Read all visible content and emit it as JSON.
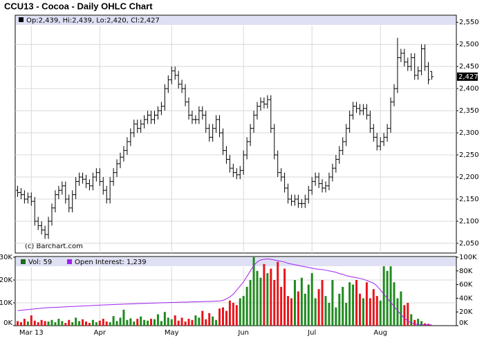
{
  "chart_data": {
    "type": "ohlc",
    "title": "CCU13 - Cocoa - Daily OHLC Chart",
    "price_legend": "Op:2,439, Hi:2,439, Lo:2,420, Cl:2,427",
    "credit": "(c) Barchart.com",
    "last_label": "2,427",
    "categories": [
      null,
      null,
      null,
      null,
      "Mar 13",
      null,
      null,
      null,
      null,
      null,
      null,
      null,
      null,
      null,
      null,
      null,
      null,
      null,
      null,
      null,
      null,
      null,
      null,
      null,
      "Apr",
      null,
      null,
      null,
      null,
      null,
      null,
      null,
      null,
      null,
      null,
      null,
      null,
      null,
      null,
      null,
      null,
      null,
      null,
      null,
      null,
      "May",
      null,
      null,
      null,
      null,
      null,
      null,
      null,
      null,
      null,
      null,
      null,
      null,
      null,
      null,
      null,
      null,
      null,
      null,
      null,
      null,
      "Jun",
      null,
      null,
      null,
      null,
      null,
      null,
      null,
      null,
      null,
      null,
      null,
      null,
      null,
      null,
      null,
      null,
      null,
      null,
      null,
      "Jul",
      null,
      null,
      null,
      null,
      null,
      null,
      null,
      null,
      null,
      null,
      null,
      null,
      null,
      null,
      null,
      null,
      null,
      null,
      null,
      "Aug",
      null,
      null,
      null,
      null,
      null,
      null,
      null,
      null,
      null,
      null,
      null,
      null,
      null,
      null,
      null
    ],
    "open": [
      2170,
      2165,
      2160,
      2150,
      2155,
      2145,
      2100,
      2090,
      2080,
      2070,
      2100,
      2130,
      2160,
      2170,
      2180,
      2150,
      2130,
      2160,
      2190,
      2200,
      2195,
      2185,
      2180,
      2200,
      2210,
      2190,
      2170,
      2150,
      2190,
      2210,
      2230,
      2245,
      2260,
      2280,
      2300,
      2320,
      2310,
      2320,
      2330,
      2340,
      2330,
      2340,
      2350,
      2360,
      2400,
      2420,
      2440,
      2430,
      2410,
      2400,
      2370,
      2340,
      2330,
      2330,
      2350,
      2340,
      2310,
      2290,
      2310,
      2330,
      2300,
      2260,
      2240,
      2220,
      2210,
      2205,
      2215,
      2250,
      2280,
      2310,
      2340,
      2360,
      2370,
      2365,
      2375,
      2310,
      2250,
      2210,
      2200,
      2175,
      2150,
      2145,
      2150,
      2140,
      2140,
      2150,
      2170,
      2190,
      2200,
      2185,
      2175,
      2180,
      2200,
      2220,
      2240,
      2260,
      2280,
      2310,
      2340,
      2360,
      2355,
      2350,
      2355,
      2340,
      2310,
      2290,
      2270,
      2280,
      2290,
      2310,
      2370,
      2400,
      2470,
      2480,
      2460,
      2450,
      2470,
      2430,
      2440,
      2490,
      2450,
      2439
    ],
    "high": [
      2180,
      2175,
      2170,
      2165,
      2165,
      2155,
      2110,
      2100,
      2090,
      2110,
      2140,
      2170,
      2180,
      2190,
      2190,
      2160,
      2170,
      2200,
      2210,
      2210,
      2205,
      2195,
      2210,
      2220,
      2220,
      2200,
      2180,
      2200,
      2220,
      2240,
      2255,
      2270,
      2290,
      2310,
      2330,
      2330,
      2330,
      2340,
      2350,
      2350,
      2350,
      2360,
      2370,
      2410,
      2430,
      2450,
      2450,
      2440,
      2420,
      2410,
      2380,
      2350,
      2340,
      2360,
      2360,
      2350,
      2320,
      2320,
      2340,
      2340,
      2310,
      2270,
      2250,
      2230,
      2220,
      2225,
      2260,
      2290,
      2320,
      2350,
      2370,
      2380,
      2380,
      2385,
      2385,
      2320,
      2260,
      2220,
      2210,
      2185,
      2160,
      2160,
      2160,
      2150,
      2160,
      2180,
      2200,
      2210,
      2210,
      2195,
      2190,
      2210,
      2230,
      2250,
      2270,
      2290,
      2320,
      2350,
      2370,
      2370,
      2365,
      2365,
      2365,
      2350,
      2320,
      2300,
      2290,
      2300,
      2320,
      2380,
      2410,
      2515,
      2490,
      2490,
      2470,
      2480,
      2480,
      2450,
      2500,
      2500,
      2460,
      2439
    ],
    "low": [
      2155,
      2150,
      2140,
      2140,
      2135,
      2090,
      2080,
      2070,
      2060,
      2060,
      2090,
      2120,
      2150,
      2160,
      2140,
      2120,
      2120,
      2150,
      2180,
      2185,
      2175,
      2170,
      2170,
      2190,
      2180,
      2160,
      2140,
      2140,
      2180,
      2200,
      2220,
      2235,
      2250,
      2270,
      2290,
      2300,
      2300,
      2310,
      2320,
      2320,
      2320,
      2330,
      2340,
      2350,
      2390,
      2410,
      2420,
      2400,
      2390,
      2360,
      2330,
      2320,
      2320,
      2320,
      2330,
      2300,
      2280,
      2280,
      2300,
      2290,
      2250,
      2230,
      2210,
      2200,
      2195,
      2195,
      2205,
      2240,
      2270,
      2300,
      2330,
      2350,
      2355,
      2355,
      2300,
      2240,
      2200,
      2190,
      2165,
      2140,
      2135,
      2135,
      2130,
      2130,
      2130,
      2140,
      2160,
      2180,
      2175,
      2165,
      2165,
      2170,
      2190,
      2210,
      2230,
      2250,
      2270,
      2300,
      2330,
      2345,
      2340,
      2340,
      2330,
      2300,
      2280,
      2260,
      2260,
      2270,
      2280,
      2300,
      2360,
      2390,
      2460,
      2450,
      2440,
      2440,
      2420,
      2420,
      2430,
      2440,
      2410,
      2420
    ],
    "close": [
      2165,
      2160,
      2150,
      2155,
      2145,
      2100,
      2090,
      2080,
      2070,
      2100,
      2130,
      2160,
      2170,
      2180,
      2150,
      2130,
      2160,
      2190,
      2200,
      2195,
      2185,
      2180,
      2200,
      2210,
      2190,
      2170,
      2150,
      2190,
      2210,
      2230,
      2245,
      2260,
      2280,
      2300,
      2320,
      2310,
      2320,
      2330,
      2340,
      2330,
      2340,
      2350,
      2360,
      2400,
      2420,
      2440,
      2430,
      2410,
      2400,
      2370,
      2340,
      2330,
      2330,
      2350,
      2340,
      2310,
      2290,
      2310,
      2330,
      2300,
      2260,
      2240,
      2220,
      2210,
      2205,
      2215,
      2250,
      2280,
      2310,
      2340,
      2360,
      2370,
      2365,
      2375,
      2310,
      2250,
      2210,
      2200,
      2175,
      2150,
      2145,
      2150,
      2140,
      2140,
      2150,
      2170,
      2190,
      2200,
      2185,
      2175,
      2180,
      2200,
      2220,
      2240,
      2260,
      2280,
      2310,
      2340,
      2360,
      2355,
      2350,
      2355,
      2340,
      2310,
      2290,
      2270,
      2280,
      2290,
      2310,
      2370,
      2400,
      2470,
      2480,
      2460,
      2450,
      2470,
      2430,
      2440,
      2490,
      2450,
      2420,
      2427
    ],
    "color": "#000000",
    "ylim": [
      2028,
      2566
    ],
    "yticks": [
      {
        "value": 2050,
        "label": "2,050"
      },
      {
        "value": 2100,
        "label": "2,100"
      },
      {
        "value": 2150,
        "label": "2,150"
      },
      {
        "value": 2200,
        "label": "2,200"
      },
      {
        "value": 2250,
        "label": "2,250"
      },
      {
        "value": 2300,
        "label": "2,300"
      },
      {
        "value": 2350,
        "label": "2,350"
      },
      {
        "value": 2400,
        "label": "2,400"
      },
      {
        "value": 2450,
        "label": "2,450"
      },
      {
        "value": 2500,
        "label": "2,500"
      },
      {
        "value": 2550,
        "label": "2,550"
      }
    ],
    "grid": true,
    "volume": {
      "name": "Vol: 59",
      "up_color": "#1f8a1f",
      "down_color": "#e8141a",
      "legend_color": "#1a6b1a",
      "values": [
        2000,
        1500,
        3000,
        1800,
        4500,
        2200,
        1500,
        2500,
        2000,
        1800,
        2500,
        1500,
        3000,
        2000,
        1200,
        2500,
        1500,
        3500,
        2000,
        2800,
        1800,
        1200,
        2500,
        1500,
        2200,
        3000,
        1800,
        1500,
        4200,
        2000,
        3500,
        7000,
        2500,
        3200,
        1800,
        3000,
        4000,
        2500,
        2200,
        3000,
        2800,
        5000,
        2000,
        6000,
        3500,
        2800,
        4500,
        2200,
        3500,
        1800,
        3000,
        2500,
        4500,
        3500,
        6500,
        2800,
        5500,
        4000,
        2500,
        7500,
        8000,
        6500,
        11000,
        10000,
        9000,
        12000,
        13000,
        17000,
        20000,
        30000,
        24000,
        21000,
        27000,
        23000,
        25000,
        20000,
        28000,
        17000,
        25000,
        13000,
        12000,
        20000,
        15000,
        21000,
        14000,
        18000,
        23000,
        12000,
        16000,
        20000,
        13000,
        10000,
        20000,
        8000,
        14000,
        17000,
        10000,
        19000,
        18000,
        20000,
        14000,
        12000,
        19000,
        12000,
        16000,
        13000,
        11000,
        26000,
        24000,
        26000,
        19000,
        12000,
        15000,
        9000,
        10000,
        5000,
        2500,
        3000,
        2000,
        1000,
        800,
        59
      ],
      "ylim": [
        0,
        30000
      ],
      "yticks": [
        {
          "value": 0,
          "label": "0K"
        },
        {
          "value": 10000,
          "label": "10K"
        },
        {
          "value": 20000,
          "label": "20K"
        },
        {
          "value": 30000,
          "label": "30K"
        }
      ]
    },
    "open_interest": {
      "name": "Open Interest: 1,239",
      "color": "#a020f0",
      "axis": "y2",
      "values": [
        22000,
        22500,
        23000,
        23500,
        24000,
        24500,
        25000,
        25500,
        26000,
        26200,
        26500,
        26800,
        27000,
        27200,
        27500,
        27800,
        28000,
        28200,
        28500,
        28700,
        29000,
        29200,
        29500,
        29700,
        30000,
        30200,
        30400,
        30600,
        30800,
        31000,
        31200,
        31400,
        31600,
        31800,
        32000,
        32200,
        32400,
        32500,
        32700,
        32900,
        33000,
        33200,
        33400,
        33500,
        33700,
        33800,
        34000,
        34100,
        34300,
        34400,
        34600,
        34700,
        34900,
        35000,
        35200,
        35300,
        35500,
        35600,
        35800,
        36000,
        37000,
        39000,
        42000,
        46000,
        52000,
        58000,
        64000,
        72000,
        80000,
        88000,
        93000,
        96000,
        97000,
        97500,
        97000,
        96000,
        95000,
        94000,
        93000,
        91000,
        90000,
        89000,
        88000,
        87000,
        86000,
        85000,
        84000,
        83000,
        82500,
        82000,
        81000,
        80000,
        79000,
        78000,
        76000,
        75000,
        73000,
        72000,
        71000,
        70000,
        69000,
        68000,
        66000,
        64000,
        62000,
        58000,
        52000,
        46000,
        40000,
        34000,
        28000,
        22000,
        16000,
        11000,
        7000,
        4000,
        2500,
        1800,
        1500,
        1300,
        1250,
        1239
      ],
      "y2lim": [
        0,
        100000
      ],
      "y2ticks": [
        {
          "value": 0,
          "label": "0K"
        },
        {
          "value": 20000,
          "label": "20K"
        },
        {
          "value": 40000,
          "label": "40K"
        },
        {
          "value": 60000,
          "label": "60K"
        },
        {
          "value": 80000,
          "label": "80K"
        },
        {
          "value": 100000,
          "label": "100K"
        }
      ]
    }
  }
}
